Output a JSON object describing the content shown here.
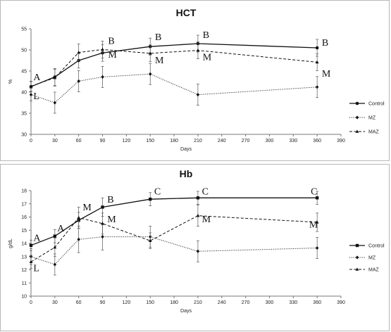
{
  "chart_data": [
    {
      "type": "line",
      "title": "HCT",
      "xlabel": "Days",
      "ylabel": "%",
      "xlim": [
        0,
        390
      ],
      "ylim": [
        30,
        55
      ],
      "x_ticks": [
        0,
        30,
        60,
        90,
        120,
        150,
        180,
        210,
        240,
        270,
        300,
        330,
        360,
        390
      ],
      "y_ticks": [
        30,
        35,
        40,
        45,
        50,
        55
      ],
      "grid": false,
      "legend_position": "right",
      "series": [
        {
          "name": "Control",
          "style": "solid",
          "marker": "circle",
          "x": [
            0,
            30,
            60,
            90,
            150,
            210,
            360
          ],
          "y": [
            41.3,
            43.6,
            47.5,
            49.3,
            50.8,
            51.5,
            50.5
          ],
          "err": [
            1.2,
            2.0,
            1.8,
            2.0,
            2.0,
            2.0,
            2.0
          ]
        },
        {
          "name": "MZ",
          "style": "dotted",
          "marker": "diamond",
          "x": [
            0,
            30,
            60,
            90,
            150,
            210,
            360
          ],
          "y": [
            39.4,
            37.5,
            42.6,
            43.6,
            44.3,
            39.4,
            41.2
          ],
          "err": [
            1.5,
            2.5,
            2.5,
            2.5,
            2.5,
            2.5,
            2.5
          ]
        },
        {
          "name": "MAZ",
          "style": "dashed",
          "marker": "triangle",
          "x": [
            0,
            30,
            60,
            90,
            150,
            210,
            360
          ],
          "y": [
            41.4,
            43.4,
            49.4,
            50.1,
            49.2,
            49.9,
            47.1
          ],
          "err": [
            1.2,
            2.0,
            2.0,
            2.0,
            2.0,
            2.0,
            2.0
          ]
        }
      ],
      "annotations": [
        {
          "text": "A",
          "x": 3,
          "y": 42.8
        },
        {
          "text": "L",
          "x": 3,
          "y": 38.3
        },
        {
          "text": "B",
          "x": 97,
          "y": 51.4
        },
        {
          "text": "M",
          "x": 97,
          "y": 48.2
        },
        {
          "text": "B",
          "x": 156,
          "y": 52.3
        },
        {
          "text": "M",
          "x": 156,
          "y": 46.8
        },
        {
          "text": "B",
          "x": 216,
          "y": 52.8
        },
        {
          "text": "M",
          "x": 216,
          "y": 47.6
        },
        {
          "text": "B",
          "x": 366,
          "y": 51.0
        },
        {
          "text": "M",
          "x": 366,
          "y": 43.7
        }
      ]
    },
    {
      "type": "line",
      "title": "Hb",
      "xlabel": "Days",
      "ylabel": "g/dL",
      "xlim": [
        0,
        390
      ],
      "ylim": [
        10,
        18
      ],
      "x_ticks": [
        0,
        30,
        60,
        90,
        120,
        150,
        180,
        210,
        240,
        270,
        300,
        330,
        360,
        390
      ],
      "y_ticks": [
        10,
        11,
        12,
        13,
        14,
        15,
        16,
        17,
        18
      ],
      "grid": false,
      "legend_position": "right",
      "series": [
        {
          "name": "Control",
          "style": "solid",
          "marker": "square",
          "x": [
            0,
            30,
            60,
            90,
            150,
            210,
            360
          ],
          "y": [
            13.85,
            14.55,
            15.75,
            16.75,
            17.35,
            17.45,
            17.45
          ],
          "err": [
            0.4,
            0.5,
            0.6,
            0.7,
            0.5,
            0.5,
            0.5
          ]
        },
        {
          "name": "MZ",
          "style": "dotted",
          "marker": "diamond",
          "x": [
            0,
            30,
            60,
            90,
            150,
            210,
            360
          ],
          "y": [
            13.0,
            12.4,
            14.3,
            14.5,
            14.5,
            13.4,
            13.65
          ],
          "err": [
            0.6,
            0.8,
            1.0,
            1.0,
            0.8,
            0.8,
            0.8
          ]
        },
        {
          "name": "MAZ",
          "style": "dashed",
          "marker": "triangle",
          "x": [
            0,
            30,
            60,
            90,
            150,
            210,
            360
          ],
          "y": [
            12.6,
            13.7,
            15.95,
            15.5,
            14.2,
            16.1,
            15.6
          ],
          "err": [
            0.5,
            0.7,
            0.8,
            0.8,
            0.6,
            0.8,
            0.7
          ]
        }
      ],
      "annotations": [
        {
          "text": "A",
          "x": 3,
          "y": 14.2
        },
        {
          "text": "L",
          "x": 3,
          "y": 11.9
        },
        {
          "text": "A",
          "x": 33,
          "y": 14.9
        },
        {
          "text": "M",
          "x": 65,
          "y": 16.5
        },
        {
          "text": "B",
          "x": 96,
          "y": 17.1
        },
        {
          "text": "M",
          "x": 96,
          "y": 15.6
        },
        {
          "text": "C",
          "x": 155,
          "y": 17.7
        },
        {
          "text": "C",
          "x": 215,
          "y": 17.7
        },
        {
          "text": "M",
          "x": 215,
          "y": 15.6
        },
        {
          "text": "C",
          "x": 352,
          "y": 17.7
        },
        {
          "text": "M",
          "x": 350,
          "y": 15.2
        }
      ]
    }
  ]
}
